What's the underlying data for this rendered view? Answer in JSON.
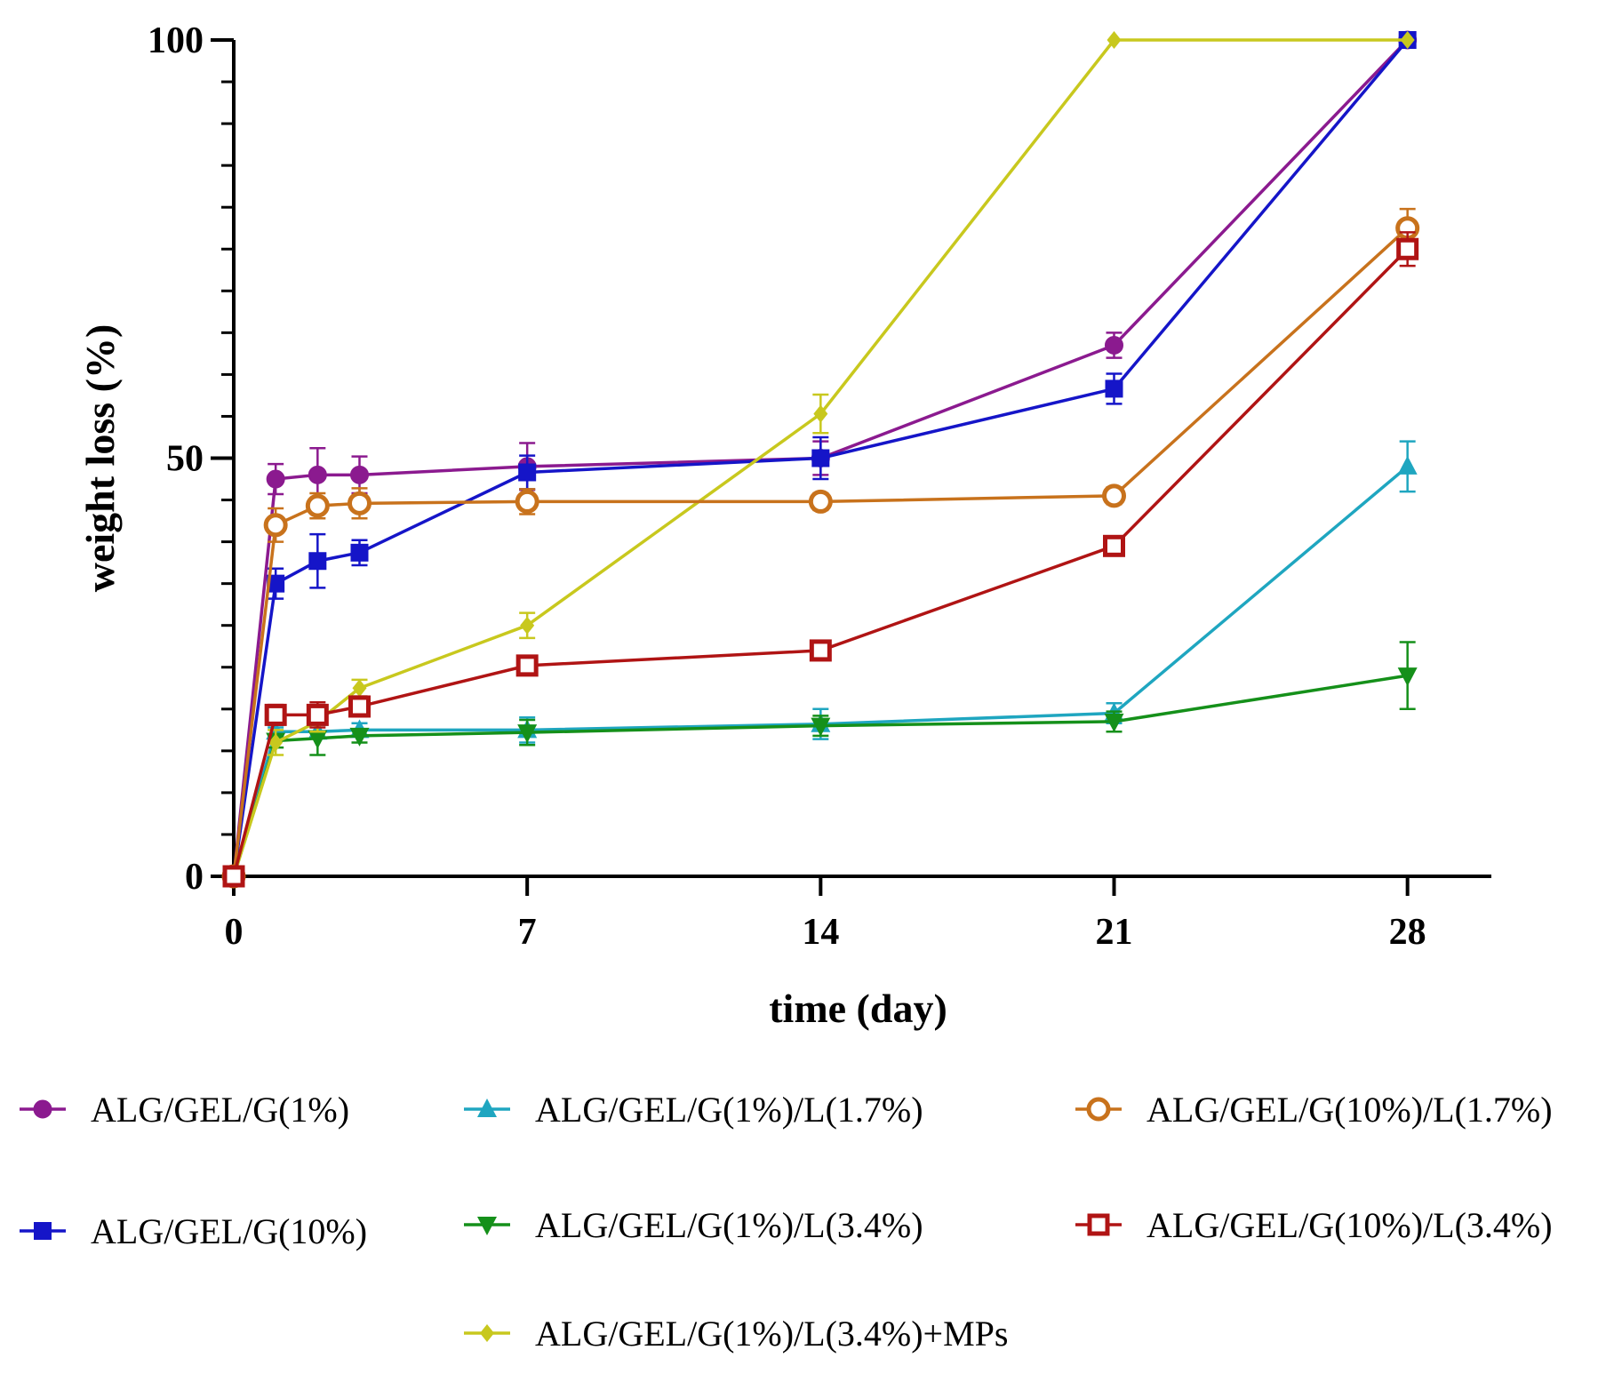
{
  "chart_data": {
    "type": "line",
    "title": "",
    "xlabel": "time (day)",
    "ylabel": "weight loss (%)",
    "xlim": [
      0,
      30
    ],
    "ylim": [
      0,
      100
    ],
    "x_ticks": [
      0,
      7,
      14,
      21,
      28
    ],
    "y_ticks": [
      0,
      50,
      100
    ],
    "y_minor_ticks": [
      5,
      10,
      15,
      20,
      25,
      30,
      35,
      40,
      45,
      55,
      60,
      65,
      70,
      75,
      80,
      85,
      90,
      95
    ],
    "legend_position": "bottom",
    "grid": false,
    "series": [
      {
        "name": "ALG/GEL/G(1%)",
        "color": "#8B1A8F",
        "marker": "circle",
        "x": [
          0,
          1,
          2,
          3,
          7,
          14,
          21,
          28
        ],
        "y": [
          0,
          47.5,
          48,
          48,
          49,
          50,
          63.5,
          100
        ],
        "err": [
          0,
          1.8,
          3.2,
          2.2,
          2.8,
          2,
          1.5,
          0
        ]
      },
      {
        "name": "ALG/GEL/G(10%)",
        "color": "#1515C8",
        "marker": "square",
        "x": [
          0,
          1,
          2,
          3,
          7,
          14,
          21,
          28
        ],
        "y": [
          0,
          35,
          37.7,
          38.7,
          48.3,
          50,
          58.3,
          100
        ],
        "err": [
          0,
          1.8,
          3.2,
          1.5,
          2,
          2.5,
          1.8,
          0
        ]
      },
      {
        "name": "ALG/GEL/G(1%)/L(1.7%)",
        "color": "#1FA6C0",
        "marker": "triangle-up",
        "x": [
          0,
          1,
          2,
          3,
          7,
          14,
          21,
          28
        ],
        "y": [
          0,
          17.3,
          17.3,
          17.5,
          17.5,
          18.2,
          19.5,
          49
        ],
        "err": [
          0,
          0.5,
          0.8,
          0.8,
          1.5,
          1.8,
          1.2,
          3
        ]
      },
      {
        "name": "ALG/GEL/G(1%)/L(3.4%)",
        "color": "#15901A",
        "marker": "triangle-down",
        "x": [
          0,
          1,
          2,
          3,
          7,
          14,
          21,
          28
        ],
        "y": [
          0,
          16.2,
          16.5,
          16.8,
          17.2,
          18,
          18.5,
          24
        ],
        "err": [
          0,
          0.8,
          2,
          0.8,
          1.5,
          1.2,
          1.2,
          4
        ]
      },
      {
        "name": "ALG/GEL/G(1%)/L(3.4%)+MPs",
        "color": "#C8C81E",
        "marker": "diamond",
        "x": [
          0,
          1,
          2,
          3,
          7,
          14,
          21,
          28
        ],
        "y": [
          0,
          16,
          18.5,
          22.5,
          30,
          55.3,
          100,
          100
        ],
        "err": [
          0,
          1.5,
          1.2,
          1,
          1.5,
          2.3,
          0,
          0
        ]
      },
      {
        "name": "ALG/GEL/G(10%)/L(1.7%)",
        "color": "#C8721C",
        "marker": "circle-open",
        "x": [
          0,
          1,
          2,
          3,
          7,
          14,
          21,
          28
        ],
        "y": [
          0,
          42,
          44.3,
          44.6,
          44.8,
          44.8,
          45.5,
          77.5
        ],
        "err": [
          0,
          2,
          1.5,
          1.8,
          1.5,
          1,
          1,
          2.3
        ]
      },
      {
        "name": "ALG/GEL/G(10%)/L(3.4%)",
        "color": "#B01414",
        "marker": "square-open",
        "x": [
          0,
          1,
          2,
          3,
          7,
          14,
          21,
          28
        ],
        "y": [
          0,
          19.3,
          19.3,
          20.3,
          25.2,
          27,
          39.5,
          75
        ],
        "err": [
          0,
          1.2,
          1.5,
          1.2,
          0.6,
          0.8,
          1,
          2
        ]
      }
    ]
  }
}
